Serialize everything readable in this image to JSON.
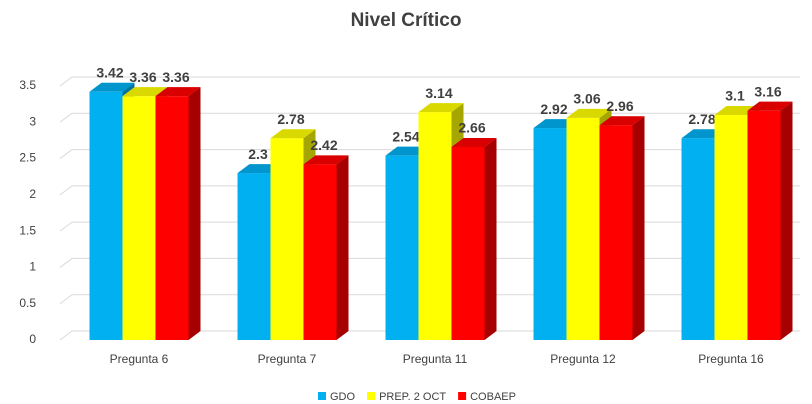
{
  "chart_data": {
    "type": "bar3d",
    "title": "Nivel Crítico",
    "categories": [
      "Pregunta 6",
      "Pregunta 7",
      "Pregunta 11",
      "Pregunta 12",
      "Pregunta 16"
    ],
    "series": [
      {
        "name": "GDO",
        "color": "#00b0f0",
        "values": [
          3.42,
          2.3,
          2.54,
          2.92,
          2.78
        ]
      },
      {
        "name": "PREP. 2 OCT",
        "color": "#ffff00",
        "values": [
          3.36,
          2.78,
          3.14,
          3.06,
          3.1
        ]
      },
      {
        "name": "COBAEP",
        "color": "#ff0000",
        "values": [
          3.36,
          2.42,
          2.66,
          2.96,
          3.16
        ]
      }
    ],
    "ylim": [
      0,
      3.5
    ],
    "yticks": [
      0,
      0.5,
      1,
      1.5,
      2,
      2.5,
      3,
      3.5
    ],
    "grid": true,
    "legend": "bottom"
  }
}
